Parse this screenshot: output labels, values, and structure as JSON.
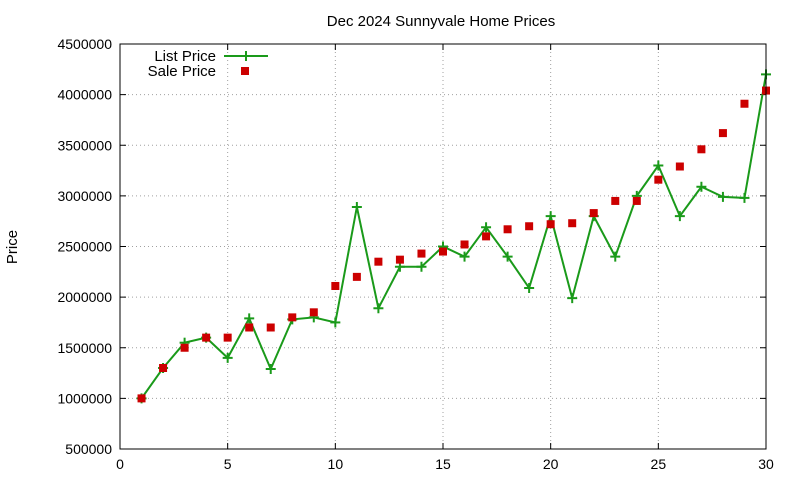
{
  "chart_data": {
    "type": "line",
    "title": "Dec 2024 Sunnyvale Home Prices",
    "xlabel": "",
    "ylabel": "Price",
    "xlim": [
      0,
      30
    ],
    "ylim": [
      500000,
      4500000
    ],
    "xticks": [
      0,
      5,
      10,
      15,
      20,
      25,
      30
    ],
    "yticks": [
      500000,
      1000000,
      1500000,
      2000000,
      2500000,
      3000000,
      3500000,
      4000000,
      4500000
    ],
    "grid": true,
    "legend_position": "top-left",
    "x": [
      1,
      2,
      3,
      4,
      5,
      6,
      7,
      8,
      9,
      10,
      11,
      12,
      13,
      14,
      15,
      16,
      17,
      18,
      19,
      20,
      21,
      22,
      23,
      24,
      25,
      26,
      27,
      28,
      29,
      30
    ],
    "series": [
      {
        "name": "List Price",
        "style": "line-with-plus-markers",
        "color": "#1a9a1a",
        "values": [
          1000000,
          1300000,
          1550000,
          1600000,
          1400000,
          1790000,
          1290000,
          1780000,
          1800000,
          1750000,
          2890000,
          1890000,
          2300000,
          2300000,
          2500000,
          2400000,
          2690000,
          2400000,
          2090000,
          2800000,
          1990000,
          2800000,
          2400000,
          3000000,
          3300000,
          2800000,
          3090000,
          2990000,
          2980000,
          4200000
        ]
      },
      {
        "name": "Sale Price",
        "style": "square-markers",
        "color": "#cc0000",
        "values": [
          1000000,
          1300000,
          1500000,
          1600000,
          1600000,
          1700000,
          1700000,
          1800000,
          1850000,
          2110000,
          2200000,
          2350000,
          2370000,
          2430000,
          2450000,
          2520000,
          2600000,
          2670000,
          2700000,
          2720000,
          2730000,
          2830000,
          2950000,
          2950000,
          3160000,
          3290000,
          3460000,
          3620000,
          3910000,
          4040000
        ]
      }
    ]
  }
}
